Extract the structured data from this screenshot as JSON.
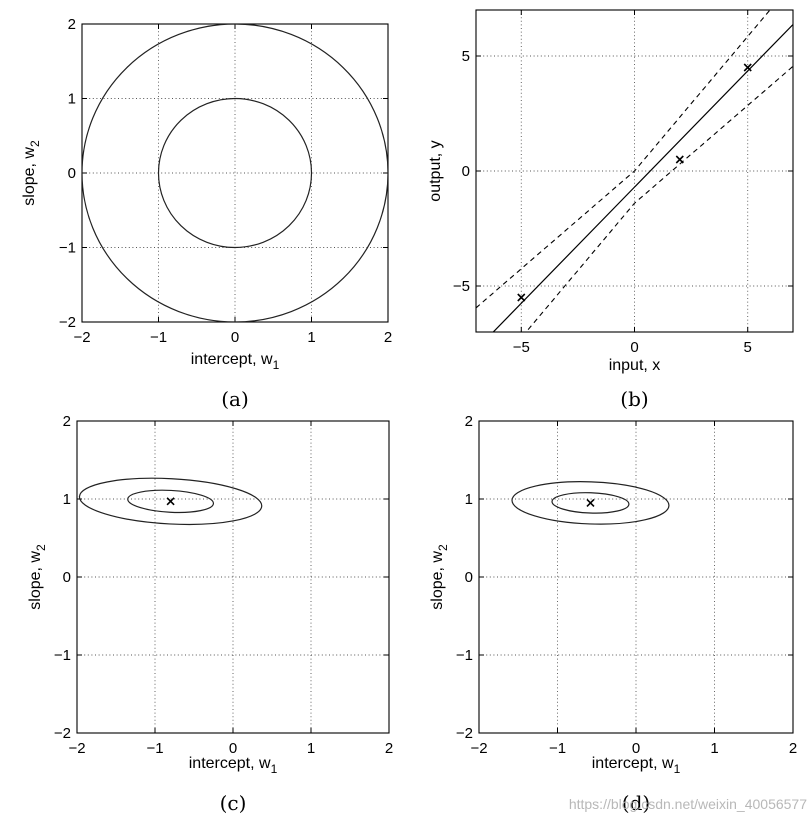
{
  "chart_data": [
    {
      "type": "contour",
      "panel_label": "(a)",
      "xlabel": "intercept, w",
      "xlabel_sub": "1",
      "ylabel": "slope, w",
      "ylabel_sub": "2",
      "xlim": [
        -2,
        2
      ],
      "ylim": [
        -2,
        2
      ],
      "xticks": [
        -2,
        -1,
        0,
        1,
        2
      ],
      "yticks": [
        -2,
        -1,
        0,
        1,
        2
      ],
      "grid": true,
      "contours": [
        {
          "cx": 0,
          "cy": 0,
          "rx": 1,
          "ry": 1,
          "angle": 0
        },
        {
          "cx": 0,
          "cy": 0,
          "rx": 2,
          "ry": 2,
          "angle": 0
        }
      ],
      "markers": []
    },
    {
      "type": "line",
      "panel_label": "(b)",
      "xlabel": "input, x",
      "ylabel": "output, y",
      "xlim": [
        -7,
        7
      ],
      "ylim": [
        -7,
        7
      ],
      "xticks": [
        -5,
        0,
        5
      ],
      "yticks": [
        -5,
        0,
        5
      ],
      "grid": true,
      "mean_line": {
        "intercept": -0.7,
        "slope": 1.01
      },
      "band_halfwidth": {
        "base": 0.7,
        "scale": 0.16
      },
      "points": [
        {
          "x": -5,
          "y": -5.5
        },
        {
          "x": 2,
          "y": 0.5
        },
        {
          "x": 5,
          "y": 4.5
        }
      ]
    },
    {
      "type": "contour",
      "panel_label": "(c)",
      "xlabel": "intercept, w",
      "xlabel_sub": "1",
      "ylabel": "slope, w",
      "ylabel_sub": "2",
      "xlim": [
        -2,
        2
      ],
      "ylim": [
        -2,
        2
      ],
      "xticks": [
        -2,
        -1,
        0,
        1,
        2
      ],
      "yticks": [
        -2,
        -1,
        0,
        1,
        2
      ],
      "grid": true,
      "contours": [
        {
          "cx": -0.8,
          "cy": 0.97,
          "rx": 0.55,
          "ry": 0.14,
          "angle": -3
        },
        {
          "cx": -0.8,
          "cy": 0.97,
          "rx": 1.17,
          "ry": 0.29,
          "angle": -3
        }
      ],
      "markers": [
        {
          "x": -0.8,
          "y": 0.97
        }
      ]
    },
    {
      "type": "contour",
      "panel_label": "(d)",
      "xlabel": "intercept, w",
      "xlabel_sub": "1",
      "ylabel": "slope, w",
      "ylabel_sub": "2",
      "xlim": [
        -2,
        2
      ],
      "ylim": [
        -2,
        2
      ],
      "xticks": [
        -2,
        -1,
        0,
        1,
        2
      ],
      "yticks": [
        -2,
        -1,
        0,
        1,
        2
      ],
      "grid": true,
      "contours": [
        {
          "cx": -0.58,
          "cy": 0.95,
          "rx": 0.49,
          "ry": 0.13,
          "angle": -2
        },
        {
          "cx": -0.58,
          "cy": 0.95,
          "rx": 1.0,
          "ry": 0.27,
          "angle": -2
        }
      ],
      "markers": [
        {
          "x": -0.58,
          "y": 0.95
        }
      ]
    }
  ],
  "watermark": "https://blog.csdn.net/weixin_40056577"
}
